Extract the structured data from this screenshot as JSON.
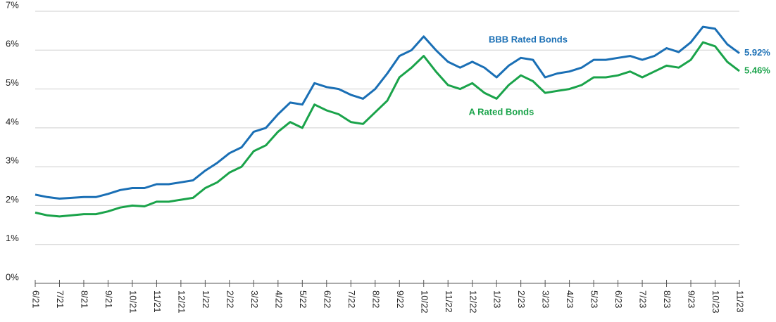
{
  "chart_data": {
    "type": "line",
    "categories": [
      "6/21",
      null,
      "7/21",
      null,
      "8/21",
      null,
      "9/21",
      null,
      "10/21",
      null,
      "11/21",
      null,
      "12/21",
      null,
      "1/22",
      null,
      "2/22",
      null,
      "3/22",
      null,
      "4/22",
      null,
      "5/22",
      null,
      "6/22",
      null,
      "7/22",
      null,
      "8/22",
      null,
      "9/22",
      null,
      "10/22",
      null,
      "11/22",
      null,
      "12/22",
      null,
      "1/23",
      null,
      "2/23",
      null,
      "3/23",
      null,
      "4/23",
      null,
      "5/23",
      null,
      "6/23",
      null,
      "7/23",
      null,
      "8/23",
      null,
      "9/23",
      null,
      "10/23",
      null,
      "11/23"
    ],
    "series": [
      {
        "name": "BBB Rated Bonds",
        "color": "#1a6fb5",
        "values": [
          2.28,
          2.22,
          2.18,
          2.2,
          2.22,
          2.22,
          2.3,
          2.4,
          2.45,
          2.45,
          2.55,
          2.55,
          2.6,
          2.65,
          2.9,
          3.1,
          3.35,
          3.5,
          3.9,
          4.0,
          4.35,
          4.65,
          4.6,
          5.15,
          5.05,
          5.0,
          4.85,
          4.75,
          5.0,
          5.4,
          5.85,
          6.0,
          6.35,
          6.0,
          5.7,
          5.55,
          5.7,
          5.55,
          5.3,
          5.6,
          5.8,
          5.75,
          5.3,
          5.4,
          5.45,
          5.55,
          5.75,
          5.75,
          5.8,
          5.85,
          5.75,
          5.85,
          6.05,
          5.95,
          6.2,
          6.6,
          6.55,
          6.15,
          5.92
        ],
        "value_labels": [
          null,
          null,
          null,
          null,
          null,
          null,
          null,
          null,
          null,
          null,
          null,
          null,
          null,
          null,
          null,
          null,
          null,
          null,
          null,
          null,
          null,
          null,
          null,
          null,
          null,
          null,
          null,
          null,
          null,
          null,
          null,
          null,
          null,
          null,
          null,
          null,
          null,
          null,
          null,
          null,
          null,
          null,
          null,
          null,
          null,
          null,
          null,
          null,
          null,
          null,
          null,
          null,
          null,
          null,
          null,
          null,
          null,
          null,
          "5.92%"
        ]
      },
      {
        "name": "A Rated Bonds",
        "color": "#1aa34a",
        "values": [
          1.82,
          1.75,
          1.72,
          1.75,
          1.78,
          1.78,
          1.85,
          1.95,
          2.0,
          1.98,
          2.1,
          2.1,
          2.15,
          2.2,
          2.45,
          2.6,
          2.85,
          3.0,
          3.4,
          3.55,
          3.9,
          4.15,
          4.0,
          4.6,
          4.45,
          4.35,
          4.15,
          4.1,
          4.4,
          4.7,
          5.3,
          5.55,
          5.85,
          5.45,
          5.1,
          5.0,
          5.15,
          4.9,
          4.75,
          5.1,
          5.35,
          5.2,
          4.9,
          4.95,
          5.0,
          5.1,
          5.3,
          5.3,
          5.35,
          5.45,
          5.3,
          5.45,
          5.6,
          5.55,
          5.75,
          6.2,
          6.1,
          5.7,
          5.46
        ],
        "value_labels": [
          null,
          null,
          null,
          null,
          null,
          null,
          null,
          null,
          null,
          null,
          null,
          null,
          null,
          null,
          null,
          null,
          null,
          null,
          null,
          null,
          null,
          null,
          null,
          null,
          null,
          null,
          null,
          null,
          null,
          null,
          null,
          null,
          null,
          null,
          null,
          null,
          null,
          null,
          null,
          null,
          null,
          null,
          null,
          null,
          null,
          null,
          null,
          null,
          null,
          null,
          null,
          null,
          null,
          null,
          null,
          null,
          null,
          null,
          "5.46%"
        ]
      }
    ],
    "ylim": [
      0,
      7
    ],
    "yticks": [
      {
        "value": 0,
        "label": "0%"
      },
      {
        "value": 1,
        "label": "1%"
      },
      {
        "value": 2,
        "label": "2%"
      },
      {
        "value": 3,
        "label": "3%"
      },
      {
        "value": 4,
        "label": "4%"
      },
      {
        "value": 5,
        "label": "5%"
      },
      {
        "value": 6,
        "label": "6%"
      },
      {
        "value": 7,
        "label": "7%"
      }
    ],
    "grid": true
  }
}
